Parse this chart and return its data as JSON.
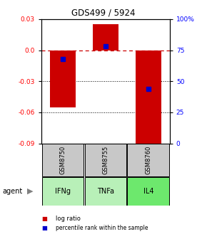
{
  "title": "GDS499 / 5924",
  "samples": [
    "IFNg",
    "TNFa",
    "IL4"
  ],
  "sample_ids": [
    "GSM8750",
    "GSM8755",
    "GSM8760"
  ],
  "log_ratios": [
    -0.055,
    0.025,
    -0.09
  ],
  "percentile_ranks": [
    0.68,
    0.78,
    0.44
  ],
  "ylim": [
    -0.09,
    0.03
  ],
  "yticks_left": [
    0.03,
    0.0,
    -0.03,
    -0.06,
    -0.09
  ],
  "yticks_right": [
    100,
    75,
    50,
    25,
    0
  ],
  "bar_color": "#cc0000",
  "rank_color": "#0000cc",
  "zero_line_color": "#cc0000",
  "grid_color": "#000000",
  "sample_bg": "#c8c8c8",
  "agent_colors": [
    "#b8f0b8",
    "#b8f0b8",
    "#6de86d"
  ],
  "legend_bar_color": "#cc0000",
  "legend_rank_color": "#0000cc",
  "bar_width": 0.6
}
